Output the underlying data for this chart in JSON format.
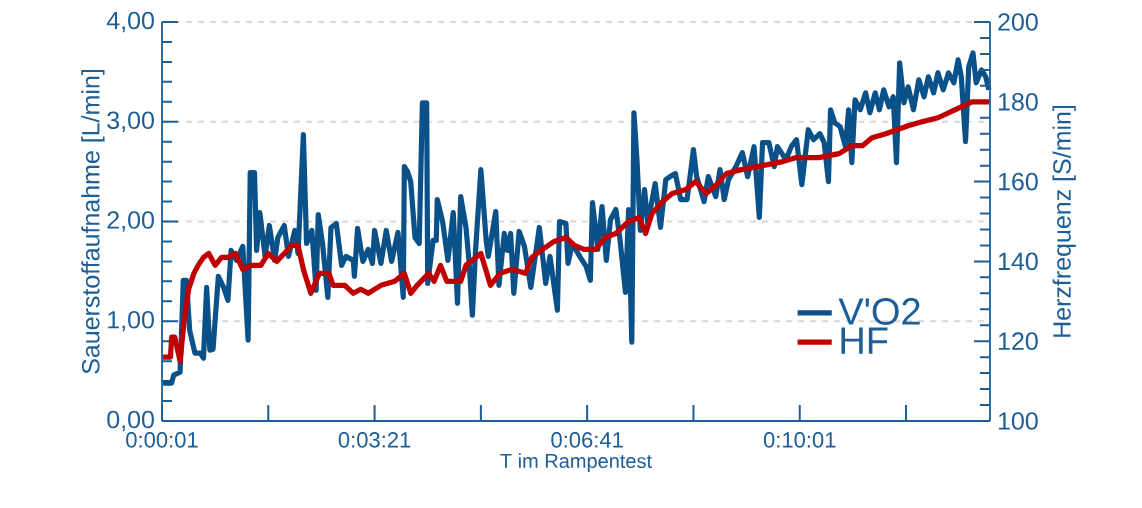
{
  "chart_data": {
    "type": "line",
    "xlabel": "T im Rampentest",
    "ylabel": "Sauerstoffaufnahme [L/min]",
    "y2label": "Herzfrequenz [S/min]",
    "xlim": [
      1,
      780
    ],
    "xticks": [
      {
        "value": 1,
        "label": "0:00:01"
      },
      {
        "value": 101,
        "label": null
      },
      {
        "value": 201,
        "label": "0:03:21"
      },
      {
        "value": 301,
        "label": null
      },
      {
        "value": 401,
        "label": "0:06:41"
      },
      {
        "value": 501,
        "label": null
      },
      {
        "value": 601,
        "label": "0:10:01"
      },
      {
        "value": 701,
        "label": null
      }
    ],
    "ylim": [
      0,
      4
    ],
    "yticks": [
      {
        "value": 0,
        "label": "0,00"
      },
      {
        "value": 1,
        "label": "1,00"
      },
      {
        "value": 2,
        "label": "2,00"
      },
      {
        "value": 3,
        "label": "3,00"
      },
      {
        "value": 4,
        "label": "4,00"
      }
    ],
    "y2lim": [
      100,
      200
    ],
    "y2ticks": [
      100,
      120,
      140,
      160,
      180,
      200
    ],
    "grid": "y",
    "legend": "bottom right",
    "series": [
      {
        "name": "V'O2",
        "color": "#0b5189",
        "x": [
          2,
          10,
          12,
          18,
          20,
          21,
          24,
          27,
          32,
          37,
          40,
          43,
          46,
          49,
          54,
          59,
          63,
          66,
          71,
          77,
          82,
          84,
          88,
          90,
          93,
          98,
          102,
          107,
          110,
          116,
          120,
          126,
          129,
          134,
          137,
          142,
          146,
          148,
          152,
          157,
          160,
          165,
          170,
          174,
          181,
          182,
          185,
          190,
          195,
          199,
          201,
          207,
          212,
          217,
          223,
          228,
          229,
          232,
          235,
          239,
          243,
          246,
          250,
          251,
          256,
          259,
          260,
          265,
          270,
          275,
          279,
          282,
          287,
          290,
          293,
          296,
          301,
          306,
          308,
          315,
          318,
          323,
          326,
          329,
          332,
          337,
          342,
          348,
          356,
          362,
          366,
          373,
          375,
          381,
          383,
          387,
          394,
          400,
          404,
          406,
          411,
          415,
          419,
          423,
          428,
          432,
          437,
          440,
          443,
          445,
          448,
          451,
          455,
          458,
          465,
          470,
          475,
          479,
          484,
          489,
          495,
          501,
          504,
          511,
          515,
          522,
          526,
          530,
          534,
          541,
          547,
          552,
          558,
          563,
          566,
          572,
          577,
          580,
          588,
          593,
          598,
          603,
          609,
          614,
          620,
          624,
          628,
          630,
          634,
          639,
          644,
          647,
          650,
          653,
          658,
          663,
          667,
          672,
          676,
          680,
          685,
          689,
          692,
          695,
          699,
          703,
          708,
          713,
          718,
          722,
          727,
          731,
          736,
          741,
          746,
          750,
          753,
          757,
          760,
          764,
          767,
          772,
          776,
          779
        ],
        "values": [
          0.38,
          0.38,
          0.46,
          0.49,
          1.08,
          1.41,
          1.41,
          0.91,
          0.68,
          0.68,
          0.63,
          1.34,
          0.71,
          0.72,
          1.45,
          1.34,
          1.21,
          1.71,
          1.61,
          1.75,
          0.81,
          2.49,
          2.49,
          1.71,
          2.09,
          1.65,
          1.96,
          1.61,
          1.84,
          1.96,
          1.65,
          1.91,
          1.68,
          2.87,
          1.78,
          1.91,
          1.31,
          2.07,
          1.78,
          1.24,
          1.94,
          1.98,
          1.56,
          1.65,
          1.61,
          1.45,
          1.93,
          1.6,
          1.72,
          1.58,
          1.91,
          1.58,
          1.91,
          1.6,
          1.89,
          1.24,
          2.55,
          2.5,
          2.4,
          1.84,
          1.78,
          3.19,
          3.19,
          1.38,
          1.81,
          1.81,
          2.22,
          2.0,
          1.61,
          2.09,
          1.18,
          2.25,
          1.94,
          1.58,
          1.06,
          1.71,
          2.52,
          1.81,
          1.65,
          2.1,
          1.36,
          1.88,
          1.71,
          1.88,
          1.28,
          1.9,
          1.75,
          1.34,
          1.94,
          1.38,
          1.65,
          1.11,
          2.0,
          1.98,
          1.58,
          1.78,
          1.65,
          1.55,
          1.41,
          2.19,
          1.72,
          2.15,
          1.61,
          2.02,
          2.12,
          1.81,
          1.29,
          2.12,
          0.79,
          3.09,
          2.59,
          1.91,
          2.32,
          1.98,
          2.38,
          1.94,
          2.42,
          2.45,
          2.48,
          2.22,
          2.22,
          2.72,
          2.45,
          2.2,
          2.45,
          2.25,
          2.52,
          2.22,
          2.42,
          2.55,
          2.69,
          2.45,
          2.75,
          2.04,
          2.79,
          2.79,
          2.55,
          2.75,
          2.62,
          2.75,
          2.82,
          2.37,
          2.92,
          2.82,
          2.88,
          2.79,
          2.4,
          3.12,
          2.99,
          2.95,
          2.75,
          3.12,
          2.59,
          3.22,
          3.12,
          3.29,
          3.09,
          3.29,
          3.12,
          3.32,
          3.15,
          3.25,
          2.59,
          3.59,
          3.19,
          3.35,
          3.12,
          3.42,
          3.25,
          3.45,
          3.29,
          3.49,
          3.32,
          3.49,
          3.39,
          3.62,
          3.45,
          2.8,
          3.55,
          3.69,
          3.39,
          3.52,
          3.45,
          3.32
        ]
      },
      {
        "name": "HF",
        "color": "#c00000",
        "axis": "y2",
        "x": [
          2,
          9,
          10,
          13,
          18,
          21,
          26,
          31,
          35,
          40,
          45,
          51,
          57,
          63,
          70,
          77,
          85,
          94,
          101,
          109,
          116,
          123,
          129,
          134,
          141,
          149,
          158,
          162,
          173,
          181,
          188,
          195,
          207,
          220,
          229,
          235,
          241,
          252,
          257,
          263,
          269,
          272,
          282,
          287,
          301,
          310,
          319,
          330,
          343,
          349,
          359,
          370,
          381,
          389,
          398,
          409,
          418,
          428,
          440,
          450,
          456,
          462,
          472,
          481,
          494,
          503,
          513,
          522,
          532,
          546,
          566,
          585,
          597,
          619,
          638,
          650,
          660,
          669,
          682,
          703,
          716,
          731,
          747,
          763,
          779
        ],
        "values": [
          116,
          116,
          121,
          121,
          115,
          123,
          133,
          137,
          139,
          141,
          142,
          139,
          141,
          141,
          142,
          138,
          139,
          139,
          142,
          140,
          142,
          144,
          144,
          138,
          132,
          137,
          137,
          134,
          134,
          132,
          133,
          132,
          134,
          135,
          137,
          132,
          134,
          137,
          135,
          139,
          135,
          135,
          135,
          139,
          142,
          134,
          137,
          138,
          137,
          141,
          143,
          145,
          146,
          144,
          143,
          143,
          146,
          147,
          150,
          151,
          147,
          152,
          155,
          157,
          158,
          160,
          157,
          159,
          162,
          163,
          164,
          165,
          166,
          166,
          167,
          169,
          169,
          171,
          172,
          174,
          175,
          176,
          178,
          180,
          180
        ]
      }
    ]
  }
}
